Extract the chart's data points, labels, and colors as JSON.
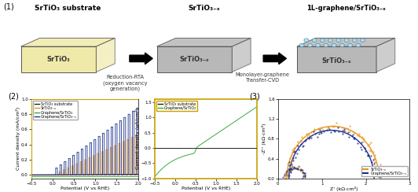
{
  "substrate_label": "SrTiO₃ substrate",
  "reduced_label": "SrTiO₃₋ₓ",
  "graphene_label": "1L-graphene/SrTiO₃₋ₓ",
  "arrow1_text": "Reduction-RTA\n(oxygen vacancy\ngeneration)",
  "arrow2_text": "Monolayer-graphene\nTransfer-CVD",
  "box1_text": "SrTiO₃",
  "box2_text": "SrTiO₃₋ₓ",
  "box3_text": "SrTiO₃₋ₓ",
  "lsv_xlabel": "Potential (V vs RHE)",
  "lsv_ylabel": "Current density (mA/cm²)",
  "lsv_zoom_ylabel": "Current density (μA/cm²)",
  "eis_xlabel": "Z' (kΩ·cm²)",
  "eis_ylabel": "-Z'' (kΩ·cm²)",
  "legend_lsv": [
    "SrTiO₃ substrate",
    "SrTiO₃₋ₓ",
    "Graphene/SrTiO₃",
    "Graphene/SrTiO₃₋ₓ"
  ],
  "legend_lsv_zoom": [
    "SrTiO₃ substrate",
    "Graphene/SrTiO₃"
  ],
  "legend_eis": [
    "SrTiO₃₋ₓ",
    "Graphene/SrTiO₃₋ₓ"
  ],
  "colors": {
    "black": "#222222",
    "orange": "#e8961e",
    "green": "#3aaa35",
    "blue": "#1a2f8a",
    "box1_fill": "#f0eaaa",
    "box2_fill": "#b8b8b8",
    "graphene_top": "#b8ddf0",
    "graphene_edge": "#4488aa"
  }
}
